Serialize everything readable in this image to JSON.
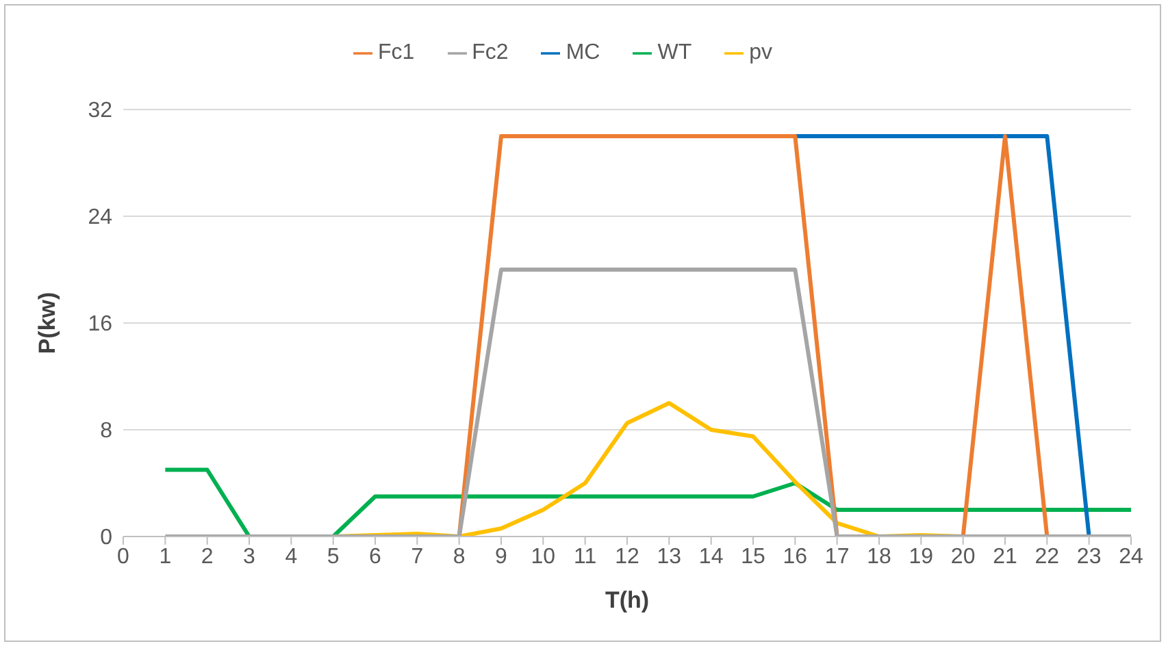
{
  "chart_data": {
    "type": "line",
    "xlabel": "T(h)",
    "ylabel": "P(kw)",
    "x": [
      1,
      2,
      3,
      4,
      5,
      6,
      7,
      8,
      9,
      10,
      11,
      12,
      13,
      14,
      15,
      16,
      17,
      18,
      19,
      20,
      21,
      22,
      23,
      24
    ],
    "xlim": [
      0,
      24
    ],
    "xticks": [
      0,
      1,
      2,
      3,
      4,
      5,
      6,
      7,
      8,
      9,
      10,
      11,
      12,
      13,
      14,
      15,
      16,
      17,
      18,
      19,
      20,
      21,
      22,
      23,
      24
    ],
    "ylim": [
      0,
      32
    ],
    "yticks": [
      0,
      8,
      16,
      24,
      32
    ],
    "grid": "y",
    "legend": "top",
    "marker": "none",
    "line_style": "solid",
    "series": [
      {
        "name": "WT",
        "color": "#00b050",
        "values": [
          5,
          5,
          0,
          null,
          0,
          3,
          3,
          3,
          3,
          3,
          3,
          3,
          3,
          3,
          3,
          4,
          2,
          2,
          2,
          2,
          2,
          2,
          2,
          2
        ]
      },
      {
        "name": "pv",
        "color": "#ffc000",
        "values": [
          null,
          null,
          null,
          null,
          0,
          0.1,
          0.2,
          0,
          0.6,
          2,
          4,
          8.5,
          10,
          8,
          7.5,
          4.1,
          1,
          0,
          0.1,
          0,
          null,
          null,
          null,
          null
        ]
      },
      {
        "name": "MC",
        "color": "#0070c0",
        "values": [
          null,
          null,
          null,
          null,
          null,
          null,
          null,
          null,
          null,
          null,
          null,
          null,
          null,
          null,
          null,
          30,
          30,
          30,
          30,
          30,
          30,
          30,
          0,
          null
        ]
      },
      {
        "name": "Fc1",
        "color": "#ed7d31",
        "values": [
          null,
          null,
          null,
          null,
          null,
          null,
          null,
          0,
          30,
          30,
          30,
          30,
          30,
          30,
          30,
          30,
          0,
          null,
          null,
          0,
          30,
          0,
          null,
          null
        ]
      },
      {
        "name": "Fc2",
        "color": "#a5a5a5",
        "values": [
          0,
          0,
          0,
          0,
          0,
          0,
          0,
          0,
          20,
          20,
          20,
          20,
          20,
          20,
          20,
          20,
          0,
          0,
          0,
          0,
          0,
          0,
          0,
          0
        ]
      }
    ]
  }
}
